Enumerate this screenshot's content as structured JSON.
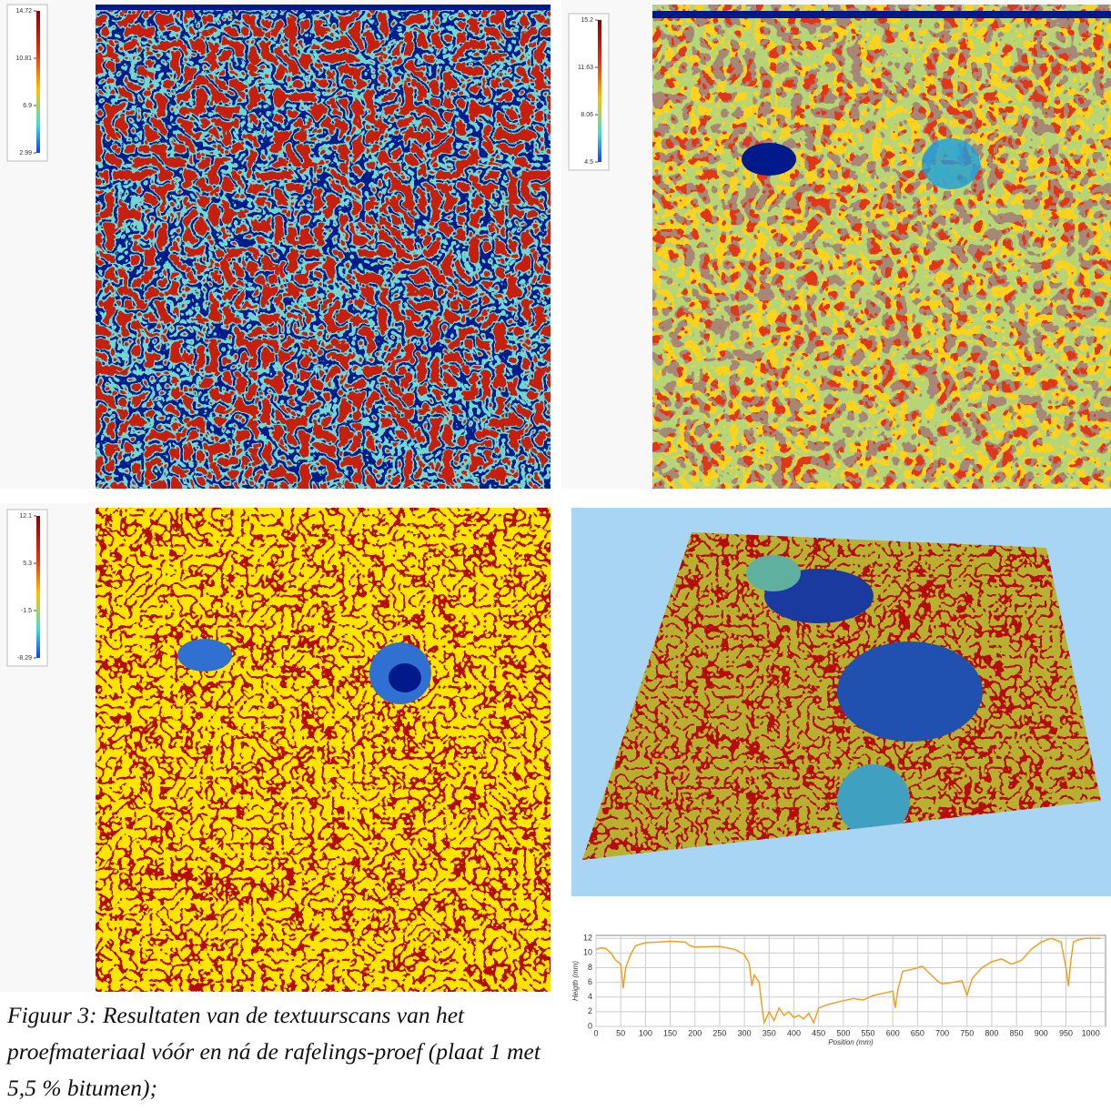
{
  "heatmaps": [
    {
      "colorbar_ticks": [
        14.72,
        10.81,
        6.9,
        2.99
      ]
    },
    {
      "colorbar_ticks": [
        15.2,
        11.63,
        8.06,
        4.5
      ]
    },
    {
      "colorbar_ticks": [
        12.1,
        5.3,
        -1.5,
        -8.29
      ]
    }
  ],
  "chart_data": {
    "type": "line",
    "x_label": "Position (mm)",
    "y_label": "Heigth (mm)",
    "x": [
      0,
      10,
      20,
      30,
      40,
      50,
      55,
      60,
      70,
      80,
      100,
      150,
      180,
      190,
      200,
      250,
      280,
      300,
      310,
      315,
      320,
      330,
      335,
      340,
      350,
      360,
      370,
      380,
      390,
      400,
      410,
      420,
      430,
      440,
      450,
      470,
      500,
      520,
      540,
      560,
      580,
      600,
      605,
      610,
      620,
      640,
      660,
      670,
      690,
      700,
      720,
      740,
      750,
      760,
      780,
      800,
      820,
      840,
      860,
      880,
      900,
      920,
      940,
      950,
      955,
      960,
      965,
      975,
      990,
      1000,
      1020
    ],
    "y": [
      10.5,
      10.7,
      10.6,
      10.0,
      9.0,
      8.5,
      5.2,
      8.0,
      9.8,
      11.0,
      11.4,
      11.6,
      11.5,
      11.0,
      10.8,
      10.9,
      10.5,
      9.8,
      8.5,
      5.5,
      7.0,
      6.0,
      3.0,
      0.5,
      2.0,
      0.8,
      2.5,
      1.5,
      2.0,
      1.2,
      1.5,
      1.0,
      1.8,
      0.5,
      2.5,
      3.0,
      3.5,
      3.8,
      3.6,
      4.2,
      4.5,
      4.8,
      2.5,
      5.0,
      7.5,
      7.8,
      8.2,
      7.5,
      6.2,
      5.8,
      6.0,
      6.2,
      4.2,
      6.5,
      8.0,
      8.8,
      9.2,
      8.5,
      9.0,
      10.5,
      11.5,
      12.0,
      11.5,
      8.0,
      5.5,
      9.0,
      11.5,
      11.8,
      12.0,
      12.0,
      12.0
    ],
    "color": "#f0a020",
    "grid": true,
    "xlim": [
      0,
      1030
    ],
    "ylim": [
      0,
      12.4
    ],
    "xticks": [
      0,
      50,
      100,
      150,
      200,
      250,
      300,
      350,
      400,
      450,
      500,
      550,
      600,
      650,
      700,
      750,
      800,
      850,
      900,
      950,
      1000
    ],
    "yticks": [
      0,
      2,
      4,
      6,
      8,
      10,
      12
    ]
  },
  "caption": "Figuur 3: Resultaten van de textuurscans van het proefmateriaal vóór en ná de rafelings-proef (plaat 1 met 5,5 % bitumen);"
}
